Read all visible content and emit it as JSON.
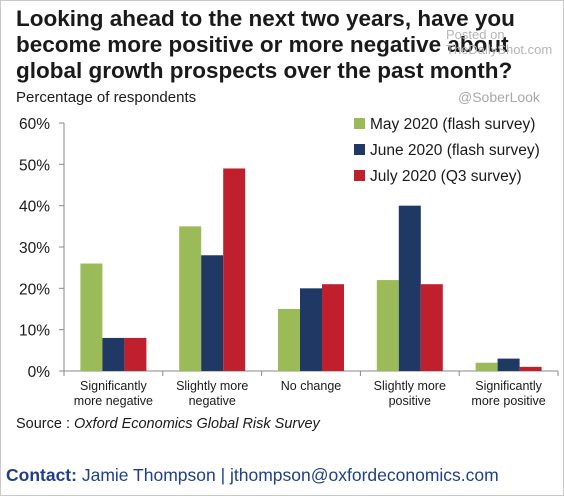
{
  "chart_data": {
    "type": "bar",
    "title": [
      "Looking ahead to the next two years, have you",
      "become more positive or more negative about",
      "global growth prospects over the past month?"
    ],
    "ylabel": "Percentage of respondents",
    "ylim": [
      0,
      60
    ],
    "yticks": [
      "0%",
      "10%",
      "20%",
      "30%",
      "40%",
      "50%",
      "60%"
    ],
    "categories": [
      [
        "Significantly",
        "more negative"
      ],
      [
        "Slightly more",
        "negative"
      ],
      [
        "No change"
      ],
      [
        "Slightly more",
        "positive"
      ],
      [
        "Significantly",
        "more positive"
      ]
    ],
    "series": [
      {
        "name": "May 2020 (flash survey)",
        "color": "#9bbb59",
        "values": [
          26,
          35,
          15,
          22,
          2
        ]
      },
      {
        "name": "June 2020 (flash survey)",
        "color": "#1f3864",
        "values": [
          8,
          28,
          20,
          40,
          3
        ]
      },
      {
        "name": "July 2020 (Q3 survey)",
        "color": "#c0202e",
        "values": [
          8,
          49,
          21,
          21,
          1
        ]
      }
    ],
    "legend_position": "top-right",
    "grid": false
  },
  "source": {
    "prefix": "Source : ",
    "text": "Oxford Economics Global Risk Survey"
  },
  "contact": {
    "label": "Contact:",
    "text": " Jamie Thompson | jthompson@oxfordeconomics.com"
  },
  "watermark": {
    "line1": "Posted on",
    "line2": "TheDailyShot.com",
    "handle": "@SoberLook"
  }
}
